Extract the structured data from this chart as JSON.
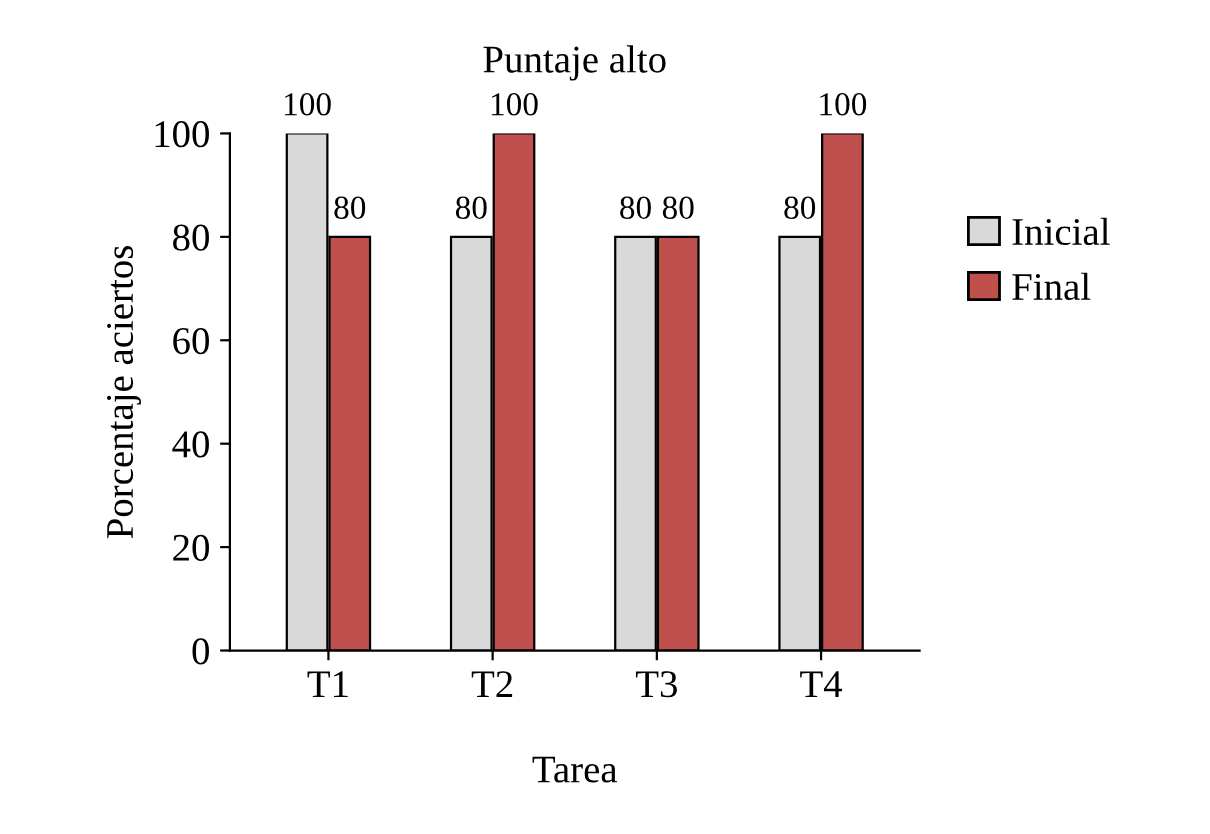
{
  "chart_data": {
    "type": "bar",
    "title": "Puntaje alto",
    "xlabel": "Tarea",
    "ylabel": "Porcentaje aciertos",
    "categories": [
      "T1",
      "T2",
      "T3",
      "T4"
    ],
    "series": [
      {
        "name": "Inicial",
        "color": "#d9d9d9",
        "values": [
          100,
          80,
          80,
          80
        ]
      },
      {
        "name": "Final",
        "color": "#c0504d",
        "values": [
          80,
          100,
          80,
          100
        ]
      }
    ],
    "ylim": [
      0,
      100
    ],
    "yticks": [
      0,
      20,
      40,
      60,
      80,
      100
    ],
    "data_labels": true,
    "legend": "right",
    "grid": false
  }
}
